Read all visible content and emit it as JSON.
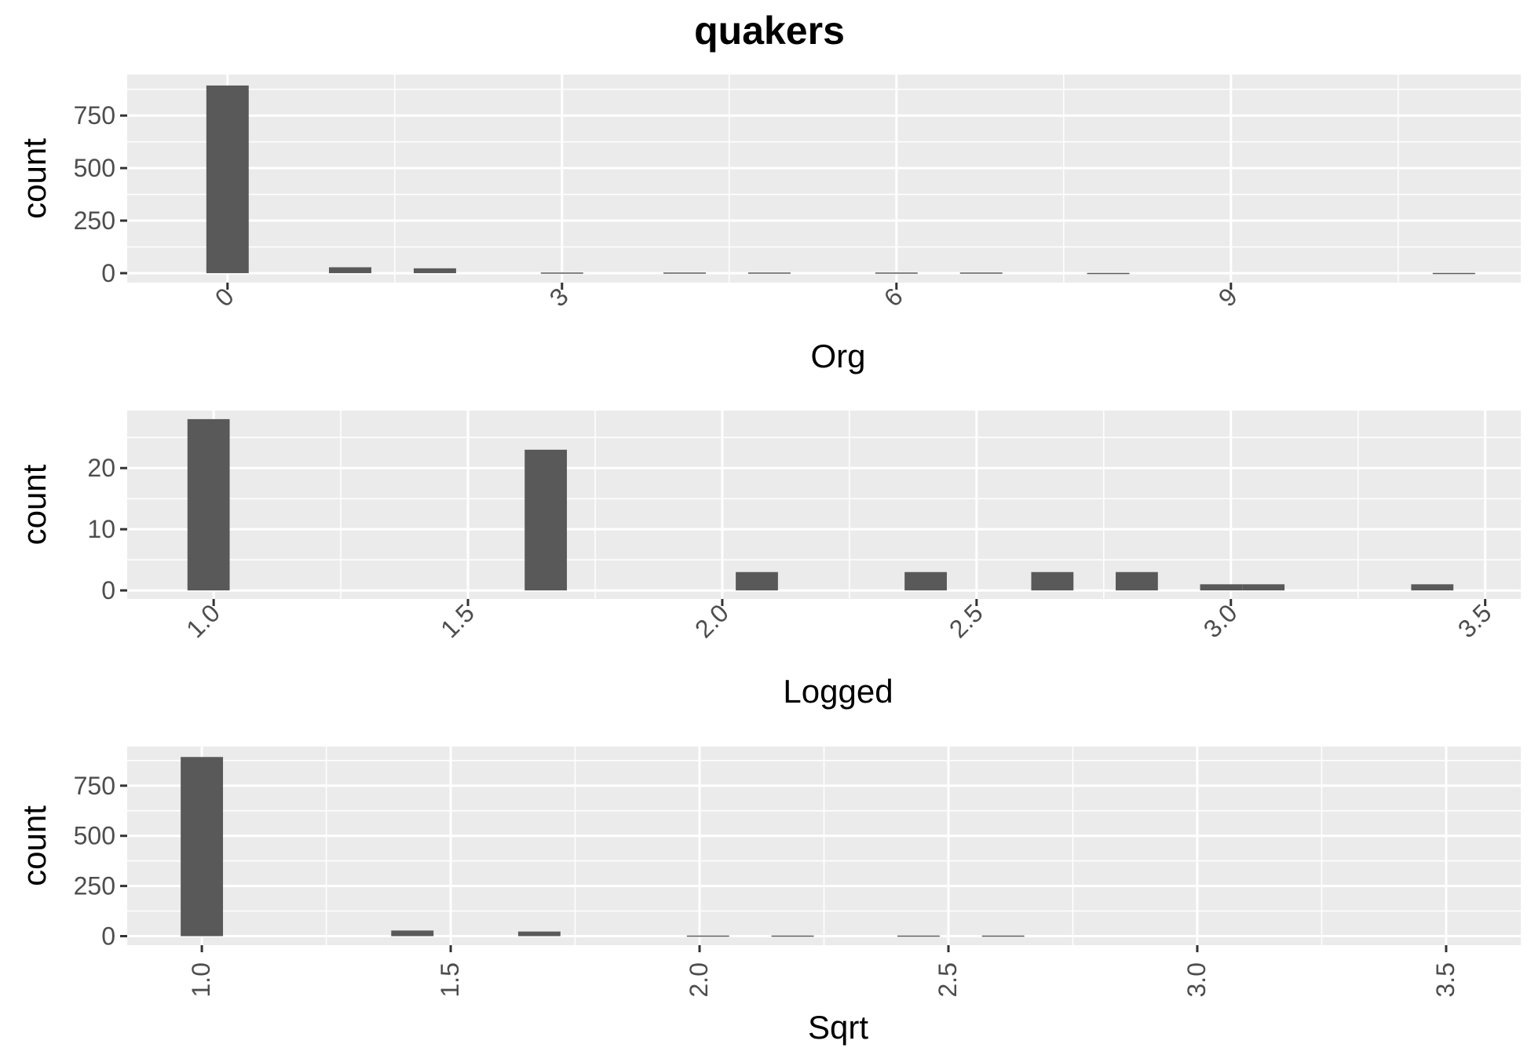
{
  "title": "quakers",
  "chart_data": [
    {
      "type": "bar",
      "xlabel": "Org",
      "ylabel": "count",
      "xlim": [
        -0.9,
        11.6
      ],
      "ylim": [
        -45,
        945
      ],
      "xbreaks": [
        0,
        3,
        6,
        9
      ],
      "xtick_labels": [
        "0",
        "3",
        "6",
        "9"
      ],
      "ybreaks": [
        0,
        250,
        500,
        750
      ],
      "ytick_labels": [
        "0",
        "250",
        "500",
        "750"
      ],
      "bar_width": 0.38,
      "grid": true,
      "x": [
        0,
        1.1,
        1.86,
        3.0,
        4.1,
        4.86,
        6.0,
        6.76,
        7.9,
        11.0
      ],
      "values": [
        893,
        28,
        23,
        3,
        3,
        3,
        3,
        3,
        1,
        1
      ]
    },
    {
      "type": "bar",
      "xlabel": "Logged",
      "ylabel": "count",
      "xlim": [
        0.83,
        3.57
      ],
      "ylim": [
        -1.4,
        29.4
      ],
      "xbreaks": [
        1.0,
        1.5,
        2.0,
        2.5,
        3.0,
        3.5
      ],
      "xtick_labels": [
        "1.0",
        "1.5",
        "2.0",
        "2.5",
        "3.0",
        "3.5"
      ],
      "ybreaks": [
        0,
        10,
        20
      ],
      "ytick_labels": [
        "0",
        "10",
        "20"
      ],
      "bar_width": 0.083,
      "grid": true,
      "x": [
        0.99,
        1.653,
        2.068,
        2.4,
        2.649,
        2.815,
        2.981,
        3.064,
        3.396
      ],
      "values": [
        28,
        23,
        3,
        3,
        3,
        3,
        1,
        1,
        1
      ]
    },
    {
      "type": "bar",
      "xlabel": "Sqrt",
      "ylabel": "count",
      "xlim": [
        0.85,
        3.65
      ],
      "ylim": [
        -45,
        945
      ],
      "xbreaks": [
        1.0,
        1.5,
        2.0,
        2.5,
        3.0,
        3.5
      ],
      "xtick_labels": [
        "1.0",
        "1.5",
        "2.0",
        "2.5",
        "3.0",
        "3.5"
      ],
      "ybreaks": [
        0,
        250,
        500,
        750
      ],
      "ytick_labels": [
        "0",
        "250",
        "500",
        "750"
      ],
      "bar_width": 0.085,
      "grid": true,
      "x": [
        1.0,
        1.423,
        1.678,
        2.017,
        2.187,
        2.44,
        2.61
      ],
      "values": [
        893,
        28,
        23,
        3,
        3,
        3,
        3
      ]
    }
  ]
}
